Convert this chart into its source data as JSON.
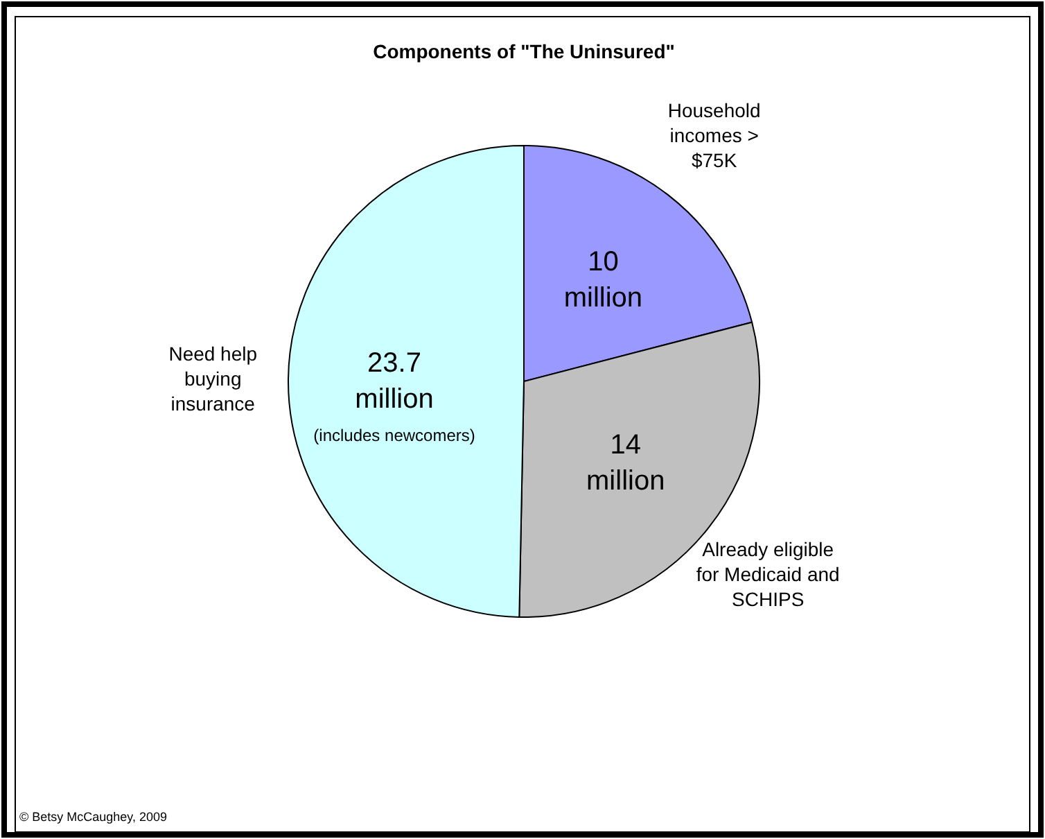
{
  "chart_data": {
    "type": "pie",
    "title": "Components of \"The Uninsured\"",
    "categories": [
      "Household incomes > $75K",
      "Already eligible for Medicaid and SCHIPS",
      "Need help buying insurance"
    ],
    "values": [
      10,
      14,
      23.7
    ],
    "colors": [
      "#9999ff",
      "#c0c0c0",
      "#ccffff"
    ],
    "value_labels": [
      "10 million",
      "14 million",
      "23.7 million"
    ],
    "annotations": [
      "(includes newcomers)",
      "© Betsy McCaughey, 2009"
    ]
  }
}
